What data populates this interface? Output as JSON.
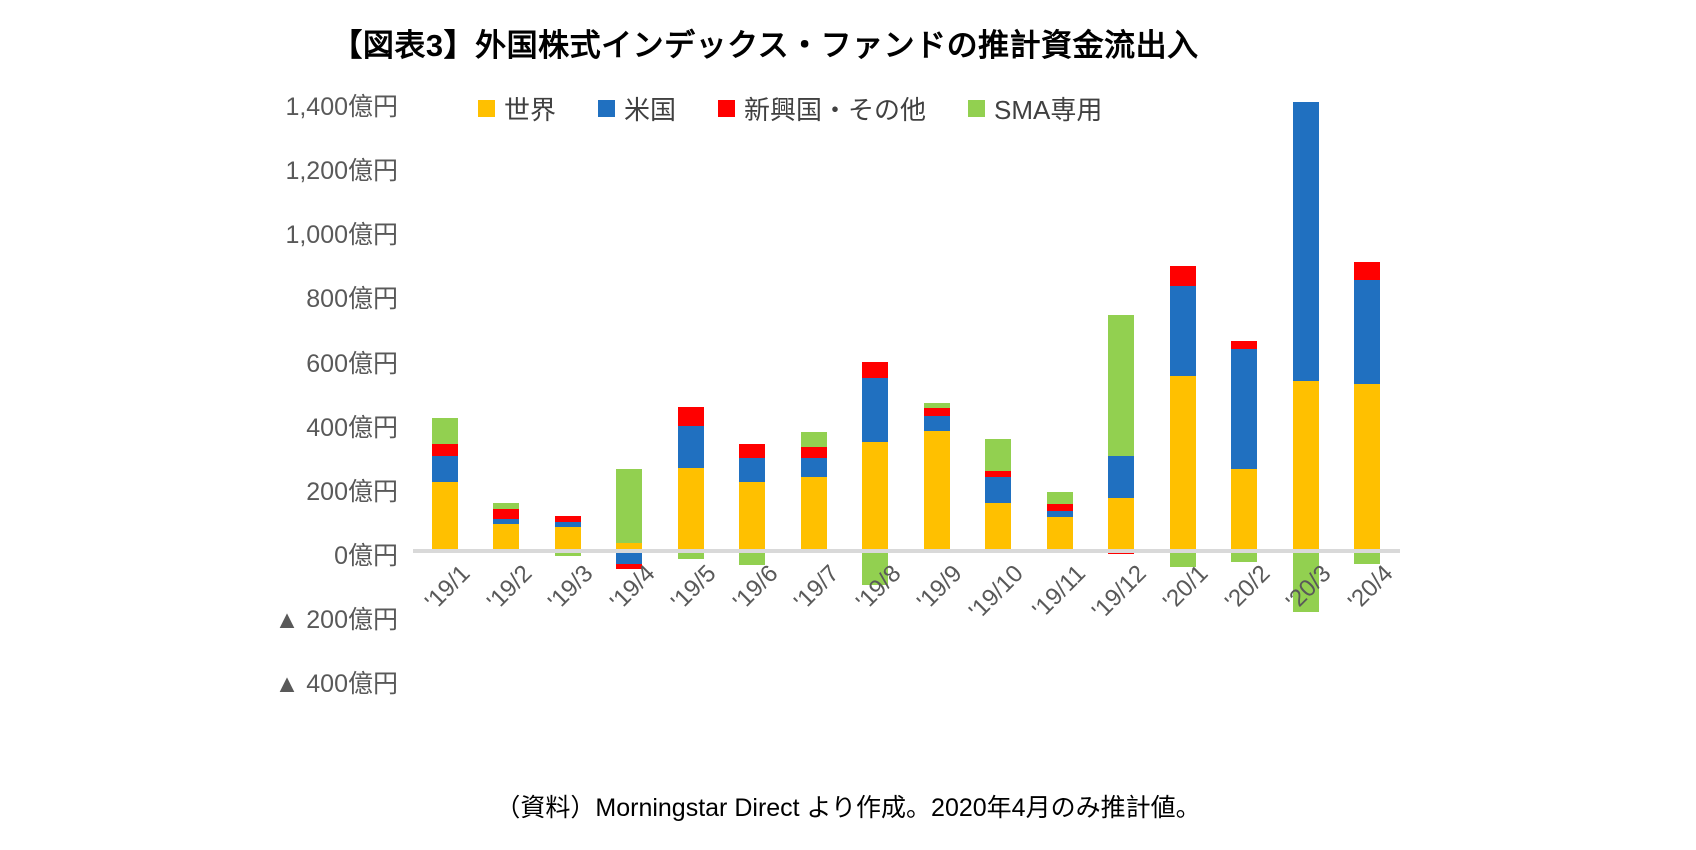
{
  "title": "【図表3】外国株式インデックス・ファンドの推計資金流出入",
  "source_note": "（資料）Morningstar Direct より作成。2020年4月のみ推計値。",
  "colors": {
    "world": "#FFC000",
    "us": "#2070C0",
    "emerging_other": "#FF0000",
    "sma": "#92D050",
    "axis_line": "#D9D9D9",
    "tick_text": "#595959",
    "legend_text": "#404040",
    "title_text": "#000000"
  },
  "chart_data": {
    "type": "bar",
    "stacked": true,
    "grid": false,
    "legend_position": "top",
    "unit": "億円",
    "negative_prefix": "▲ ",
    "ylim": [
      -400,
      1400
    ],
    "ytick_step": 200,
    "ytick_labels": [
      "1,400億円",
      "1,200億円",
      "1,000億円",
      "800億円",
      "600億円",
      "400億円",
      "200億円",
      "0億円",
      "▲ 200億円",
      "▲ 400億円"
    ],
    "categories": [
      "'19/1",
      "'19/2",
      "'19/3",
      "'19/4",
      "'19/5",
      "'19/6",
      "'19/7",
      "'19/8",
      "'19/9",
      "'19/10",
      "'19/11",
      "'19/12",
      "'20/1",
      "'20/2",
      "'20/3",
      "'20/4"
    ],
    "series": [
      {
        "name": "世界",
        "color": "#FFC000",
        "values": [
          215,
          85,
          75,
          25,
          260,
          215,
          230,
          340,
          375,
          150,
          105,
          165,
          545,
          255,
          530,
          520
        ]
      },
      {
        "name": "米国",
        "color": "#2070C0",
        "values": [
          80,
          15,
          15,
          -40,
          130,
          75,
          60,
          200,
          45,
          80,
          20,
          130,
          280,
          375,
          870,
          325
        ]
      },
      {
        "name": "新興国・その他",
        "color": "#FF0000",
        "values": [
          40,
          30,
          20,
          -15,
          60,
          45,
          35,
          50,
          25,
          20,
          20,
          -10,
          65,
          25,
          0,
          55
        ]
      },
      {
        "name": "SMA専用",
        "color": "#92D050",
        "values": [
          80,
          20,
          -15,
          230,
          -25,
          -45,
          45,
          -105,
          15,
          100,
          40,
          440,
          -50,
          -35,
          -190,
          -40
        ]
      }
    ]
  }
}
